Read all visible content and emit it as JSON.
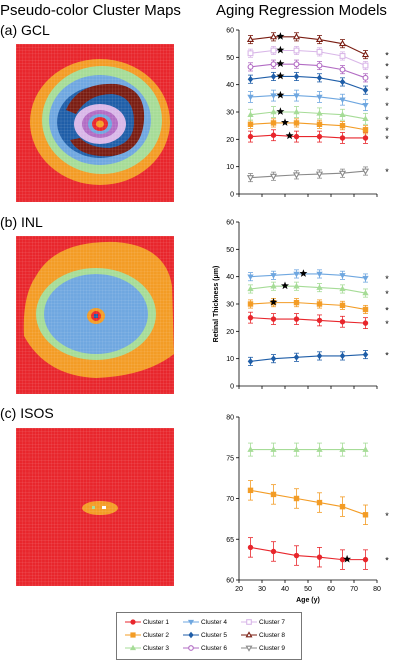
{
  "headers": {
    "left": "Pseudo-color Cluster Maps",
    "right": "Aging Regression Models"
  },
  "panels": [
    {
      "label": "(a) GCL"
    },
    {
      "label": "(b) INL"
    },
    {
      "label": "(c) ISOS"
    }
  ],
  "legend": [
    {
      "label": "Cluster 1",
      "color": "#e8262c",
      "marker": "circle"
    },
    {
      "label": "Cluster 2",
      "color": "#f39c25",
      "marker": "square"
    },
    {
      "label": "Cluster 3",
      "color": "#a6dc97",
      "marker": "triangle"
    },
    {
      "label": "Cluster 4",
      "color": "#6fa7e0",
      "marker": "triangle-down"
    },
    {
      "label": "Cluster 5",
      "color": "#1f5ea8",
      "marker": "diamond"
    },
    {
      "label": "Cluster 6",
      "color": "#b26cc4",
      "marker": "circle-open"
    },
    {
      "label": "Cluster 7",
      "color": "#d9b7e8",
      "marker": "square-open"
    },
    {
      "label": "Cluster 8",
      "color": "#7a1d12",
      "marker": "triangle-open"
    },
    {
      "label": "Cluster 9",
      "color": "#8a8a8a",
      "marker": "triangle-down-open"
    }
  ],
  "chart_data": [
    {
      "type": "line",
      "panel": "(a) GCL",
      "x": [
        25,
        35,
        45,
        55,
        65,
        75
      ],
      "ylim": [
        0,
        60
      ],
      "xlim": [
        20,
        80
      ],
      "yticks": [
        0,
        10,
        20,
        30,
        40,
        50,
        60
      ],
      "series": [
        {
          "name": "Cluster 9",
          "values": [
            6,
            6.5,
            7,
            7.3,
            7.6,
            8.4
          ],
          "err": 1.5,
          "star": null,
          "sig": "*"
        },
        {
          "name": "Cluster 1",
          "values": [
            21,
            21.5,
            21,
            21,
            20.5,
            20.5
          ],
          "err": 2,
          "star": 42,
          "sig": "*"
        },
        {
          "name": "Cluster 2",
          "values": [
            25.5,
            26,
            26,
            25.5,
            25,
            23.5
          ],
          "err": 1.5,
          "star": 40,
          "sig": "*"
        },
        {
          "name": "Cluster 3",
          "values": [
            29,
            30,
            30,
            29.5,
            29,
            27.5
          ],
          "err": 2,
          "star": 38,
          "sig": "*"
        },
        {
          "name": "Cluster 4",
          "values": [
            35.5,
            36,
            36,
            35.5,
            34.5,
            32.5
          ],
          "err": 2,
          "star": 38,
          "sig": "*"
        },
        {
          "name": "Cluster 5",
          "values": [
            42,
            43,
            43,
            42.5,
            41,
            38
          ],
          "err": 1.5,
          "star": 38,
          "sig": "*"
        },
        {
          "name": "Cluster 6",
          "values": [
            46.5,
            47.5,
            47.5,
            47,
            45.5,
            42.5
          ],
          "err": 1.5,
          "star": 38,
          "sig": "*"
        },
        {
          "name": "Cluster 7",
          "values": [
            51.5,
            52.5,
            52.5,
            52,
            50.5,
            47
          ],
          "err": 1.5,
          "star": 38,
          "sig": "*"
        },
        {
          "name": "Cluster 8",
          "values": [
            56.5,
            57.5,
            57.5,
            56.5,
            55,
            51
          ],
          "err": 1.5,
          "star": 38,
          "sig": "*"
        }
      ]
    },
    {
      "type": "line",
      "panel": "(b) INL",
      "ylabel": "Retinal Thickness (μm)",
      "x": [
        25,
        35,
        45,
        55,
        65,
        75
      ],
      "ylim": [
        0,
        60
      ],
      "xlim": [
        20,
        80
      ],
      "yticks": [
        0,
        10,
        20,
        30,
        40,
        50,
        60
      ],
      "series": [
        {
          "name": "Cluster 5",
          "values": [
            9,
            10,
            10.5,
            11,
            11,
            11.5
          ],
          "err": 1.5,
          "star": null,
          "sig": "*"
        },
        {
          "name": "Cluster 1",
          "values": [
            25,
            24.5,
            24.5,
            24,
            23.5,
            23
          ],
          "err": 2,
          "star": null,
          "sig": "*"
        },
        {
          "name": "Cluster 2",
          "values": [
            30,
            30.5,
            30.5,
            30,
            29.5,
            28
          ],
          "err": 1.5,
          "star": 35,
          "sig": "*"
        },
        {
          "name": "Cluster 3",
          "values": [
            35.5,
            36.5,
            36.5,
            36,
            35.5,
            34
          ],
          "err": 1.5,
          "star": 40,
          "sig": "*"
        },
        {
          "name": "Cluster 4",
          "values": [
            40,
            40.5,
            41,
            41,
            40.5,
            39.5
          ],
          "err": 1.5,
          "star": 48,
          "sig": "*"
        }
      ]
    },
    {
      "type": "line",
      "panel": "(c) ISOS",
      "xlabel": "Age (y)",
      "x": [
        25,
        35,
        45,
        55,
        65,
        75
      ],
      "ylim": [
        60,
        80
      ],
      "xlim": [
        20,
        80
      ],
      "yticks": [
        60,
        65,
        70,
        75,
        80
      ],
      "xticks": [
        20,
        30,
        40,
        50,
        60,
        70,
        80
      ],
      "series": [
        {
          "name": "Cluster 1",
          "values": [
            64,
            63.5,
            63,
            62.8,
            62.5,
            62.5
          ],
          "err": 1.2,
          "star": 67,
          "sig": "*"
        },
        {
          "name": "Cluster 2",
          "values": [
            71,
            70.5,
            70,
            69.5,
            69,
            68
          ],
          "err": 1.2,
          "star": null,
          "sig": "*"
        },
        {
          "name": "Cluster 3",
          "values": [
            76,
            76,
            76,
            76,
            76,
            76
          ],
          "err": 0.8,
          "star": null,
          "sig": ""
        }
      ]
    }
  ]
}
